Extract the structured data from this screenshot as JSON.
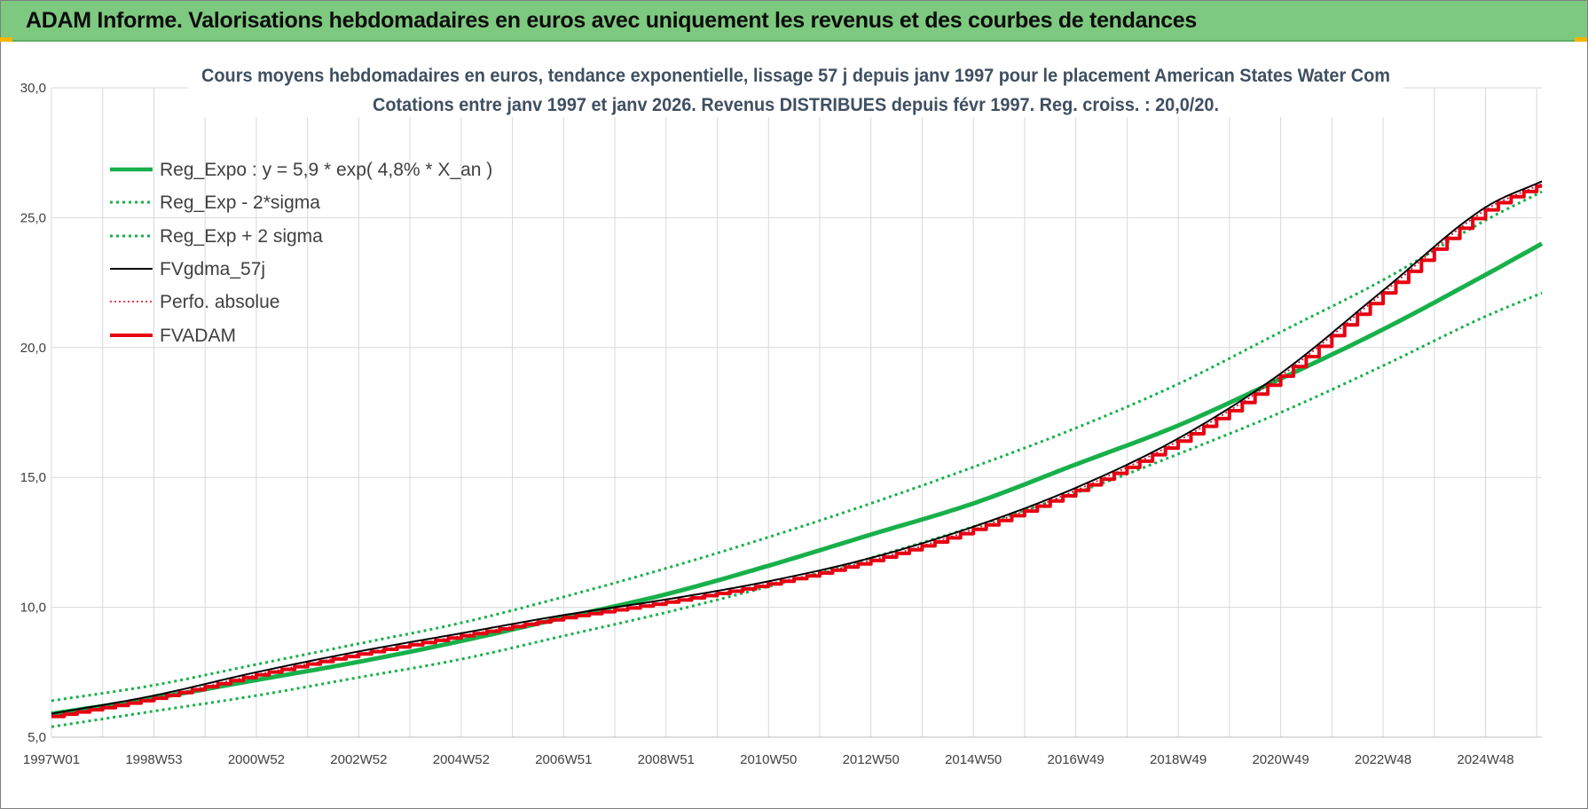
{
  "header": {
    "title": "ADAM Informe. Valorisations hebdomadaires en euros avec uniquement les revenus et des courbes de tendances"
  },
  "chart_data": {
    "type": "line",
    "title": "Cours moyens hebdomadaires en euros, tendance exponentielle, lissage 57 j depuis janv 1997  pour le placement American States Water Com",
    "subtitle": "Cotations entre janv 1997 et janv 2026. Revenus DISTRIBUES depuis févr 1997. Reg. croiss. : 20,0/20.",
    "xlabel": "",
    "ylabel": "",
    "ylim": [
      5,
      30
    ],
    "y_ticks": [
      "5,0",
      "10,0",
      "15,0",
      "20,0",
      "25,0",
      "30,0"
    ],
    "y_tick_values": [
      5,
      10,
      15,
      20,
      25,
      30
    ],
    "x_range": [
      1997.0,
      2026.1
    ],
    "x_ticks": [
      {
        "label": "1997W01",
        "year": 1997.0
      },
      {
        "label": "1998W53",
        "year": 1999.0
      },
      {
        "label": "2000W52",
        "year": 2001.0
      },
      {
        "label": "2002W52",
        "year": 2003.0
      },
      {
        "label": "2004W52",
        "year": 2005.0
      },
      {
        "label": "2006W51",
        "year": 2007.0
      },
      {
        "label": "2008W51",
        "year": 2009.0
      },
      {
        "label": "2010W50",
        "year": 2011.0
      },
      {
        "label": "2012W50",
        "year": 2013.0
      },
      {
        "label": "2014W50",
        "year": 2015.0
      },
      {
        "label": "2016W49",
        "year": 2017.0
      },
      {
        "label": "2018W49",
        "year": 2019.0
      },
      {
        "label": "2020W49",
        "year": 2021.0
      },
      {
        "label": "2022W48",
        "year": 2023.0
      },
      {
        "label": "2024W48",
        "year": 2025.0
      }
    ],
    "grid": true,
    "legend_position": "top-left",
    "series": [
      {
        "name": "Reg_Expo : y = 5,9 * exp( 4,8% *  X_an )",
        "style": "solid-thick",
        "color": "#18b04b",
        "x": [
          1997,
          1999,
          2001,
          2003,
          2005,
          2007,
          2009,
          2011,
          2013,
          2015,
          2017,
          2019,
          2021,
          2023,
          2025,
          2026.1
        ],
        "values": [
          5.9,
          6.5,
          7.2,
          7.9,
          8.7,
          9.6,
          10.5,
          11.6,
          12.8,
          14.0,
          15.5,
          17.0,
          18.8,
          20.7,
          22.8,
          24.0
        ]
      },
      {
        "name": "Reg_Exp - 2*sigma",
        "style": "dotted",
        "color": "#18b04b",
        "x": [
          1997,
          1999,
          2001,
          2003,
          2005,
          2007,
          2009,
          2011,
          2013,
          2015,
          2017,
          2019,
          2021,
          2023,
          2025,
          2026.1
        ],
        "values": [
          5.4,
          6.0,
          6.6,
          7.3,
          8.0,
          8.9,
          9.8,
          10.8,
          11.9,
          13.1,
          14.4,
          15.9,
          17.5,
          19.3,
          21.2,
          22.1
        ]
      },
      {
        "name": "Reg_Exp + 2 sigma",
        "style": "dotted",
        "color": "#18b04b",
        "x": [
          1997,
          1999,
          2001,
          2003,
          2005,
          2007,
          2009,
          2011,
          2013,
          2015,
          2017,
          2019,
          2021,
          2023,
          2025,
          2026.1
        ],
        "values": [
          6.4,
          7.0,
          7.8,
          8.6,
          9.4,
          10.4,
          11.5,
          12.7,
          14.0,
          15.4,
          16.9,
          18.6,
          20.6,
          22.6,
          24.9,
          26.0
        ]
      },
      {
        "name": "FVgdma_57j",
        "style": "solid",
        "color": "#000000",
        "x": [
          1997,
          1999,
          2001,
          2003,
          2005,
          2007,
          2009,
          2011,
          2013,
          2015,
          2017,
          2019,
          2021,
          2023,
          2025,
          2026.1
        ],
        "values": [
          5.9,
          6.6,
          7.5,
          8.3,
          9.0,
          9.7,
          10.3,
          11.0,
          11.9,
          13.1,
          14.6,
          16.5,
          19.0,
          22.2,
          25.4,
          26.4
        ]
      },
      {
        "name": "Perfo. absolue",
        "style": "dotted-thin",
        "color": "#d9001b",
        "x": [
          1997,
          1999,
          2001,
          2003,
          2005,
          2007,
          2009,
          2011,
          2013,
          2015,
          2017,
          2019,
          2021,
          2023,
          2025,
          2026.1
        ],
        "values": [
          5.8,
          6.5,
          7.4,
          8.2,
          8.9,
          9.6,
          10.2,
          10.9,
          11.8,
          13.0,
          14.5,
          16.4,
          18.9,
          22.1,
          25.3,
          26.3
        ]
      },
      {
        "name": "FVADAM",
        "style": "step-thick",
        "color": "#e60012",
        "x": [
          1997,
          1999,
          2001,
          2003,
          2005,
          2007,
          2009,
          2011,
          2013,
          2015,
          2017,
          2019,
          2021,
          2023,
          2025,
          2026.1
        ],
        "values": [
          5.8,
          6.5,
          7.4,
          8.2,
          8.9,
          9.6,
          10.2,
          10.9,
          11.8,
          13.0,
          14.5,
          16.4,
          18.9,
          22.1,
          25.3,
          26.3
        ]
      }
    ]
  }
}
